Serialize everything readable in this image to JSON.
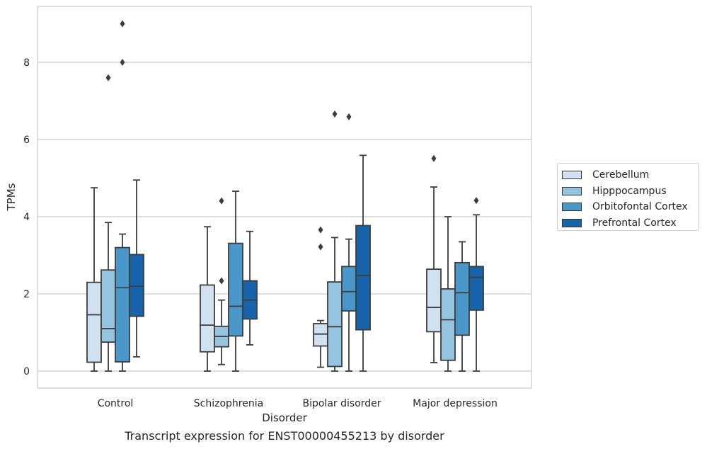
{
  "chart_data": {
    "type": "box",
    "title": "",
    "caption": "Transcript expression for ENST00000455213 by disorder",
    "xlabel": "Disorder",
    "ylabel": "TPMs",
    "ylim": [
      -0.45,
      9.45
    ],
    "yticks": [
      0,
      2,
      4,
      6,
      8
    ],
    "grid": "horizontal",
    "legend_position": "right",
    "categories": [
      "Control",
      "Schizophrenia",
      "Bipolar disorder",
      "Major depression"
    ],
    "series": [
      {
        "name": "Cerebellum",
        "color": "#d0e1f2",
        "boxes": [
          {
            "whisker_low": 0.0,
            "q1": 0.23,
            "median": 1.46,
            "q3": 2.3,
            "whisker_high": 4.75,
            "outliers": []
          },
          {
            "whisker_low": 0.0,
            "q1": 0.5,
            "median": 1.19,
            "q3": 2.23,
            "whisker_high": 3.74,
            "outliers": []
          },
          {
            "whisker_low": 0.1,
            "q1": 0.65,
            "median": 0.96,
            "q3": 1.23,
            "whisker_high": 1.31,
            "outliers": [
              3.22,
              3.66
            ]
          },
          {
            "whisker_low": 0.22,
            "q1": 1.02,
            "median": 1.65,
            "q3": 2.64,
            "whisker_high": 4.77,
            "outliers": [
              5.51
            ]
          }
        ]
      },
      {
        "name": "Hipppocampus",
        "color": "#94c4df",
        "boxes": [
          {
            "whisker_low": 0.0,
            "q1": 0.75,
            "median": 1.1,
            "q3": 2.62,
            "whisker_high": 3.85,
            "outliers": [
              7.6
            ]
          },
          {
            "whisker_low": 0.17,
            "q1": 0.63,
            "median": 0.9,
            "q3": 1.16,
            "whisker_high": 1.84,
            "outliers": [
              2.34,
              4.41
            ]
          },
          {
            "whisker_low": 0.0,
            "q1": 0.12,
            "median": 1.15,
            "q3": 2.31,
            "whisker_high": 3.46,
            "outliers": [
              6.66
            ]
          },
          {
            "whisker_low": 0.0,
            "q1": 0.28,
            "median": 1.33,
            "q3": 2.13,
            "whisker_high": 4.0,
            "outliers": []
          }
        ]
      },
      {
        "name": "Orbitofontal Cortex",
        "color": "#4a98c9",
        "boxes": [
          {
            "whisker_low": 0.0,
            "q1": 0.24,
            "median": 2.16,
            "q3": 3.2,
            "whisker_high": 3.55,
            "outliers": [
              8.0,
              9.0
            ]
          },
          {
            "whisker_low": 0.0,
            "q1": 0.91,
            "median": 1.68,
            "q3": 3.31,
            "whisker_high": 4.66,
            "outliers": []
          },
          {
            "whisker_low": 0.0,
            "q1": 1.56,
            "median": 2.06,
            "q3": 2.71,
            "whisker_high": 3.42,
            "outliers": [
              6.59
            ]
          },
          {
            "whisker_low": 0.0,
            "q1": 0.93,
            "median": 2.03,
            "q3": 2.81,
            "whisker_high": 3.35,
            "outliers": []
          }
        ]
      },
      {
        "name": "Prefrontal Cortex",
        "color": "#1764ab",
        "boxes": [
          {
            "whisker_low": 0.37,
            "q1": 1.42,
            "median": 2.2,
            "q3": 3.02,
            "whisker_high": 4.95,
            "outliers": []
          },
          {
            "whisker_low": 0.68,
            "q1": 1.35,
            "median": 1.84,
            "q3": 2.34,
            "whisker_high": 3.62,
            "outliers": []
          },
          {
            "whisker_low": 0.0,
            "q1": 1.07,
            "median": 2.48,
            "q3": 3.77,
            "whisker_high": 5.59,
            "outliers": []
          },
          {
            "whisker_low": 0.0,
            "q1": 1.58,
            "median": 2.43,
            "q3": 2.71,
            "whisker_high": 4.05,
            "outliers": [
              4.42
            ]
          }
        ]
      }
    ]
  }
}
